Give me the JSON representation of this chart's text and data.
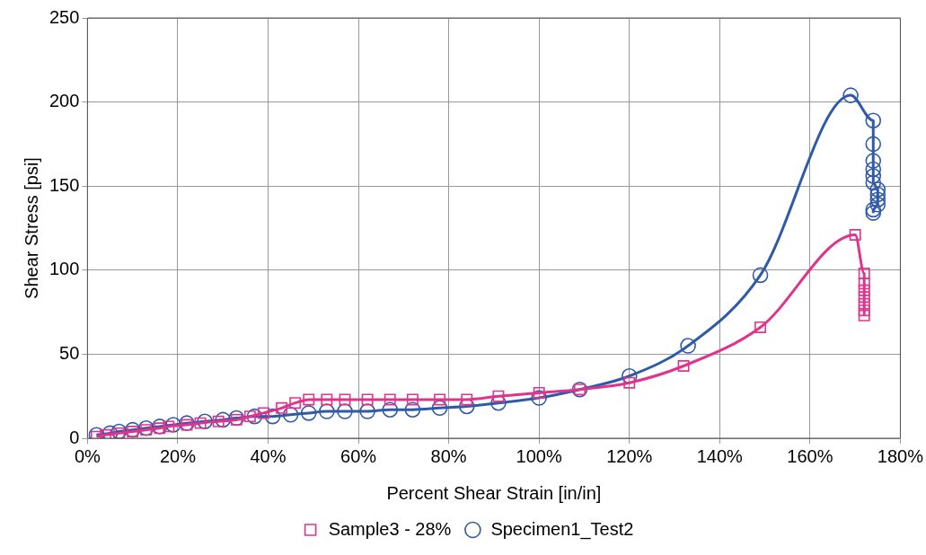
{
  "chart_data": {
    "type": "line",
    "xlabel": "Percent Shear Strain [in/in]",
    "ylabel": "Shear Stress [psi]",
    "xlim": [
      0,
      180
    ],
    "xticks": [
      {
        "value": 0,
        "label": "0%"
      },
      {
        "value": 20,
        "label": "20%"
      },
      {
        "value": 40,
        "label": "40%"
      },
      {
        "value": 60,
        "label": "60%"
      },
      {
        "value": 80,
        "label": "80%"
      },
      {
        "value": 100,
        "label": "100%"
      },
      {
        "value": 120,
        "label": "120%"
      },
      {
        "value": 140,
        "label": "140%"
      },
      {
        "value": 160,
        "label": "160%"
      },
      {
        "value": 180,
        "label": "180%"
      }
    ],
    "ylim": [
      0,
      250
    ],
    "yticks": [
      0,
      50,
      100,
      150,
      200,
      250
    ],
    "grid": true,
    "legend": "bottom",
    "line_style": "solid",
    "series": [
      {
        "name": "Sample3 - 28%",
        "color": "#e0338c",
        "marker": "square",
        "x": [
          2,
          4,
          7,
          10,
          13,
          16,
          18,
          22,
          25,
          29,
          33,
          36,
          39,
          43,
          46,
          49,
          53,
          57,
          62,
          67,
          72,
          78,
          84,
          91,
          100,
          109,
          120,
          132,
          149,
          170,
          172,
          172,
          172,
          172,
          172,
          172,
          172
        ],
        "values": [
          1,
          2,
          3,
          4,
          5,
          6,
          7,
          8,
          9,
          10,
          11,
          13,
          15,
          18,
          21,
          23,
          23,
          23,
          23,
          23,
          23,
          23,
          23,
          25,
          27,
          29,
          33,
          43,
          66,
          121,
          98,
          92,
          88,
          84,
          80,
          76,
          73
        ]
      },
      {
        "name": "Specimen1_Test2",
        "color": "#2f5aa8",
        "marker": "circle",
        "x": [
          2,
          5,
          7,
          10,
          13,
          16,
          19,
          22,
          26,
          30,
          33,
          37,
          41,
          45,
          49,
          53,
          57,
          62,
          67,
          72,
          78,
          84,
          91,
          100,
          109,
          120,
          133,
          149,
          169,
          174,
          174,
          174,
          174,
          174,
          174,
          175,
          175,
          175,
          175,
          174,
          174
        ],
        "values": [
          2,
          3,
          4,
          5,
          6,
          7,
          8,
          9,
          10,
          11,
          12,
          13,
          13,
          14,
          15,
          16,
          16,
          16,
          17,
          17,
          18,
          19,
          21,
          24,
          29,
          37,
          55,
          97,
          204,
          189,
          175,
          165,
          160,
          156,
          152,
          148,
          145,
          142,
          139,
          136,
          134
        ]
      }
    ]
  }
}
